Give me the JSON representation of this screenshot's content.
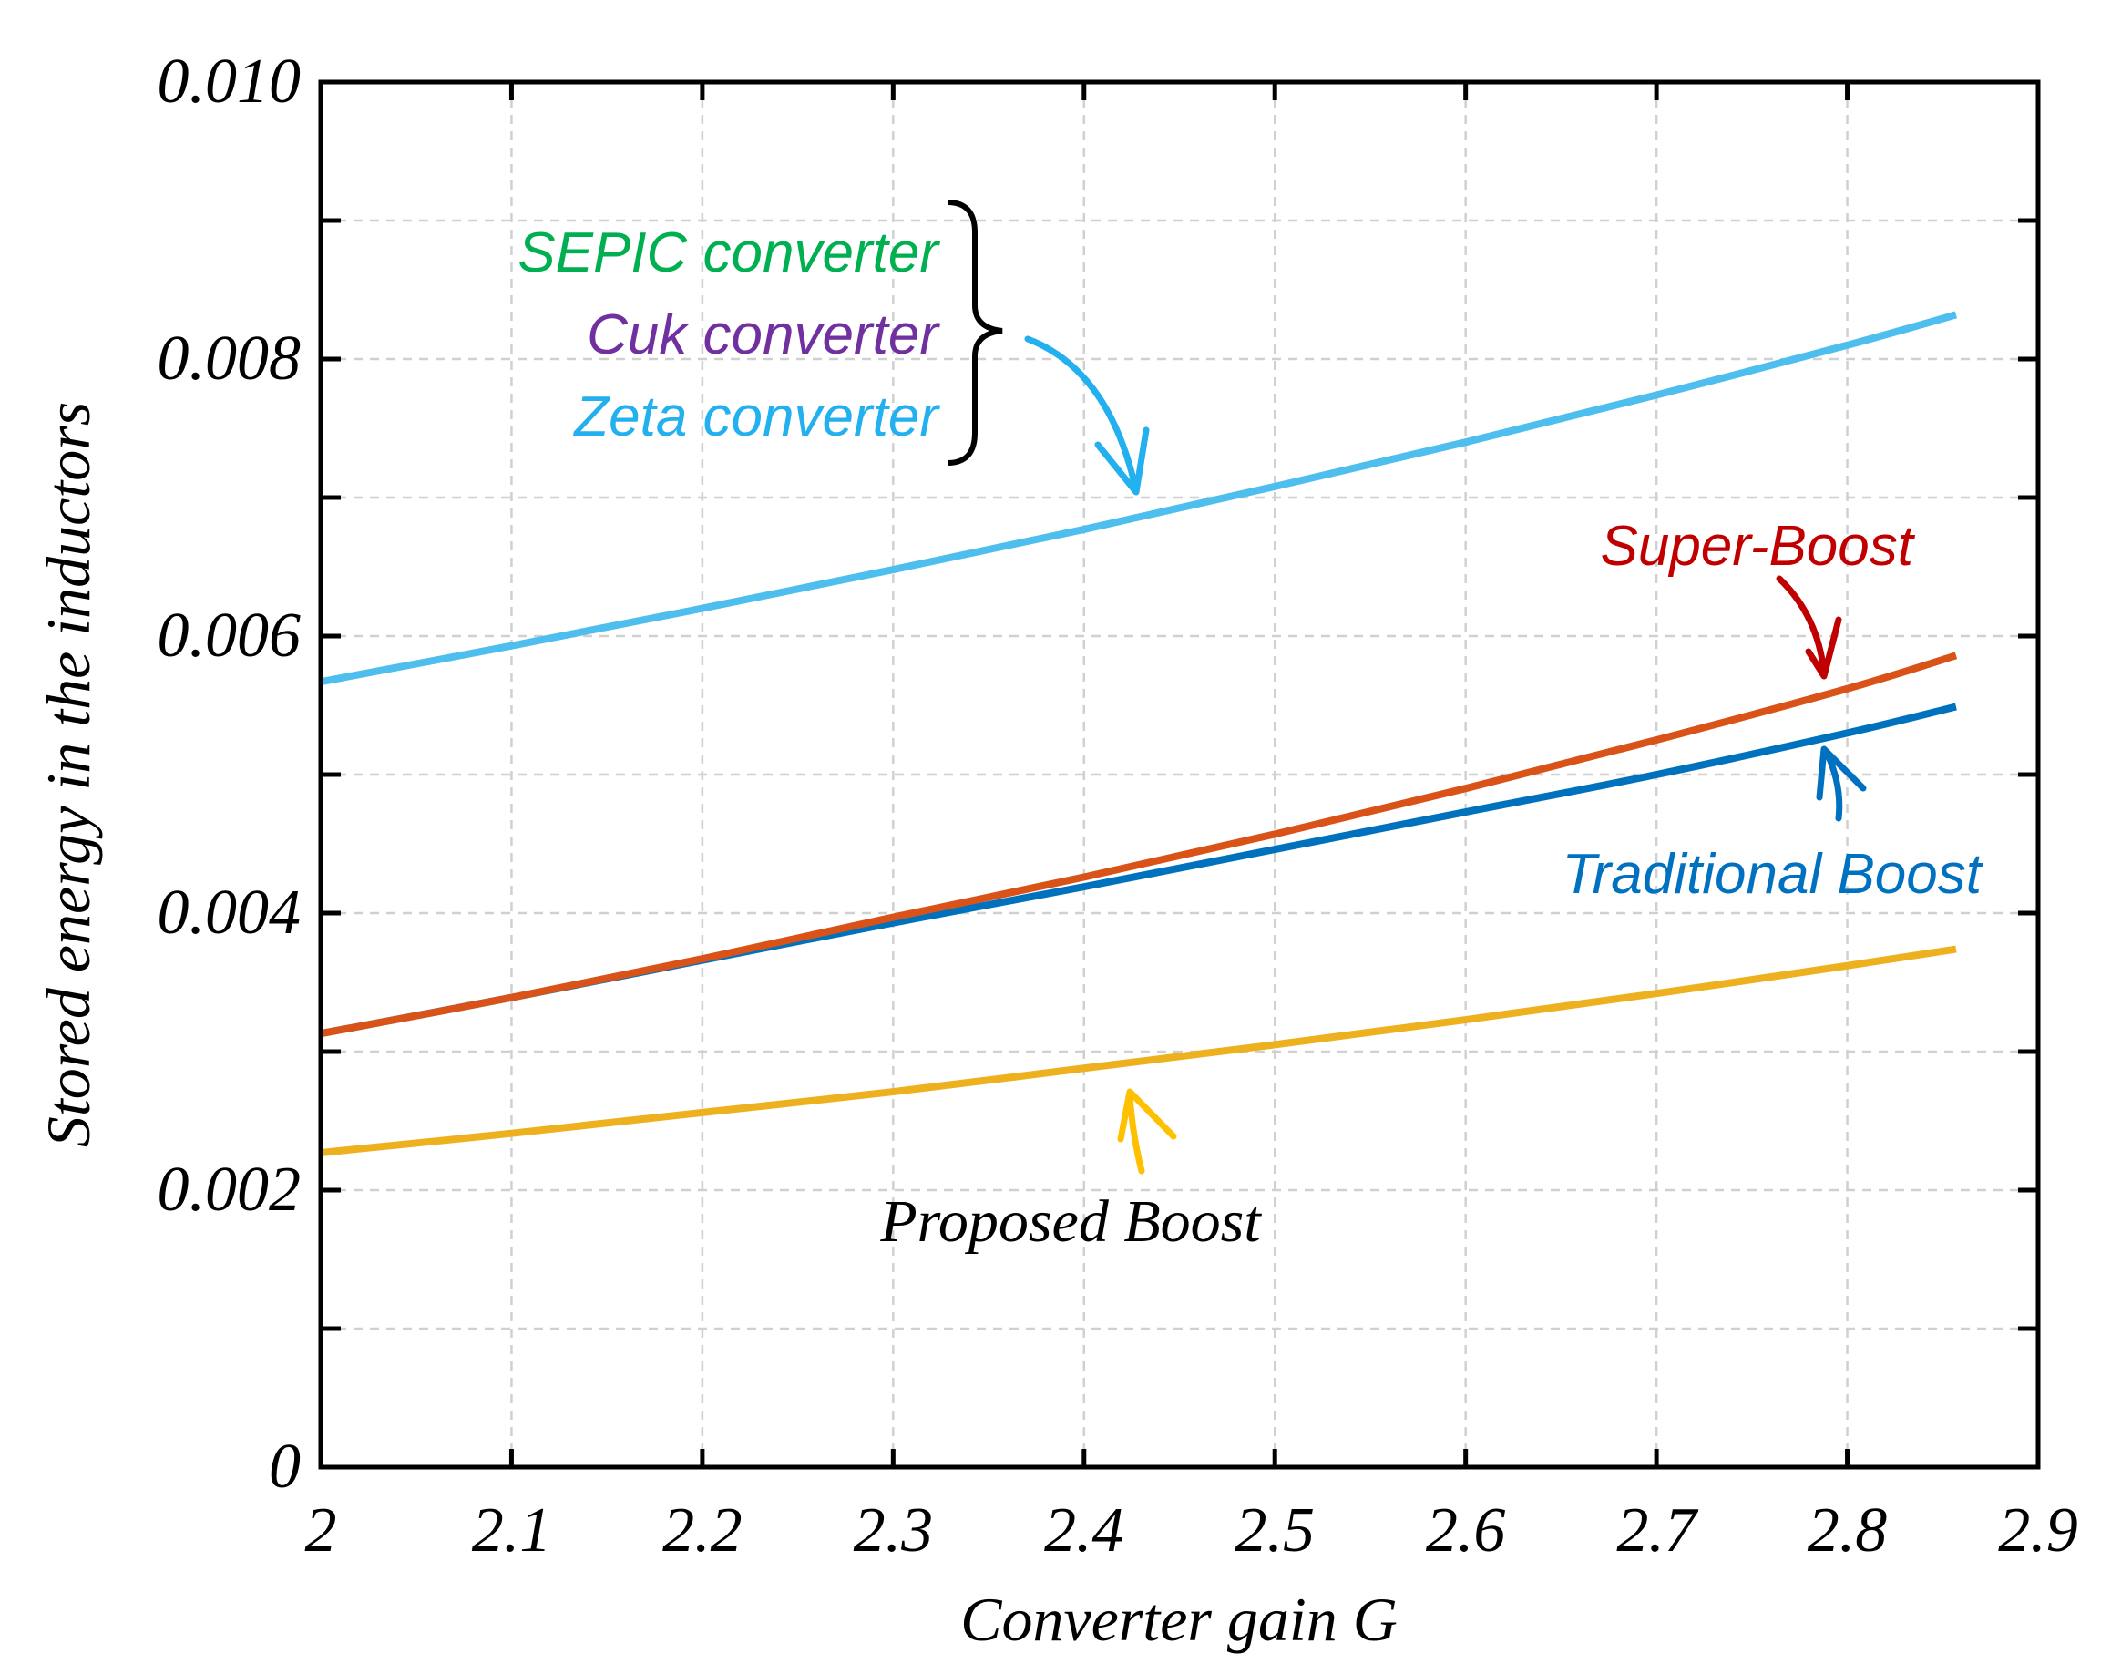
{
  "chart_data": {
    "type": "line",
    "title": "",
    "xlabel": "Converter gain G",
    "ylabel": "Stored energy in the inductors",
    "xlim": [
      2,
      2.9
    ],
    "ylim": [
      0,
      0.01
    ],
    "x_ticks": [
      "2",
      "2.1",
      "2.2",
      "2.3",
      "2.4",
      "2.5",
      "2.6",
      "2.7",
      "2.8",
      "2.9"
    ],
    "y_ticks": [
      "0",
      "0.002",
      "0.004",
      "0.006",
      "0.008",
      "0.010"
    ],
    "grid": true,
    "series": [
      {
        "name": "Zeta converter",
        "color": "#4DBEEE",
        "x": [
          2.0,
          2.1,
          2.2,
          2.3,
          2.4,
          2.5,
          2.6,
          2.7,
          2.8,
          2.857
        ],
        "y": [
          0.00567,
          0.00593,
          0.0062,
          0.00648,
          0.00677,
          0.00708,
          0.0074,
          0.00774,
          0.0081,
          0.00832
        ]
      },
      {
        "name": "Super-Boost",
        "color": "#D95319",
        "x": [
          2.0,
          2.1,
          2.2,
          2.3,
          2.4,
          2.5,
          2.6,
          2.7,
          2.8,
          2.857
        ],
        "y": [
          0.00313,
          0.00339,
          0.00367,
          0.00397,
          0.00426,
          0.00457,
          0.0049,
          0.00525,
          0.00562,
          0.00586
        ]
      },
      {
        "name": "Traditional Boost",
        "color": "#0072BD",
        "x": [
          2.0,
          2.1,
          2.2,
          2.3,
          2.4,
          2.5,
          2.6,
          2.7,
          2.8,
          2.857
        ],
        "y": [
          0.00313,
          0.00339,
          0.00366,
          0.00393,
          0.00419,
          0.00446,
          0.00473,
          0.005,
          0.0053,
          0.00549
        ]
      },
      {
        "name": "Proposed Boost",
        "color": "#EDB120",
        "x": [
          2.0,
          2.1,
          2.2,
          2.3,
          2.4,
          2.5,
          2.6,
          2.7,
          2.8,
          2.857
        ],
        "y": [
          0.00227,
          0.00241,
          0.00256,
          0.00271,
          0.00288,
          0.00305,
          0.00323,
          0.00342,
          0.00362,
          0.00374
        ]
      }
    ],
    "annotations": [
      {
        "text": "SEPIC converter",
        "color": "#00B050"
      },
      {
        "text": "Cuk converter",
        "color": "#7030A0"
      },
      {
        "text": "Zeta converter",
        "color": "#23B0EE"
      },
      {
        "text": "Super-Boost",
        "color": "#C00000"
      },
      {
        "text": "Traditional Boost",
        "color": "#0070C0"
      },
      {
        "text": "Proposed Boost",
        "color": "#000000"
      }
    ],
    "arrow_colors": {
      "zeta_group": "#23B0EE",
      "super_boost": "#C00000",
      "traditional_boost": "#0070C0",
      "proposed_boost": "#FFC000"
    }
  }
}
